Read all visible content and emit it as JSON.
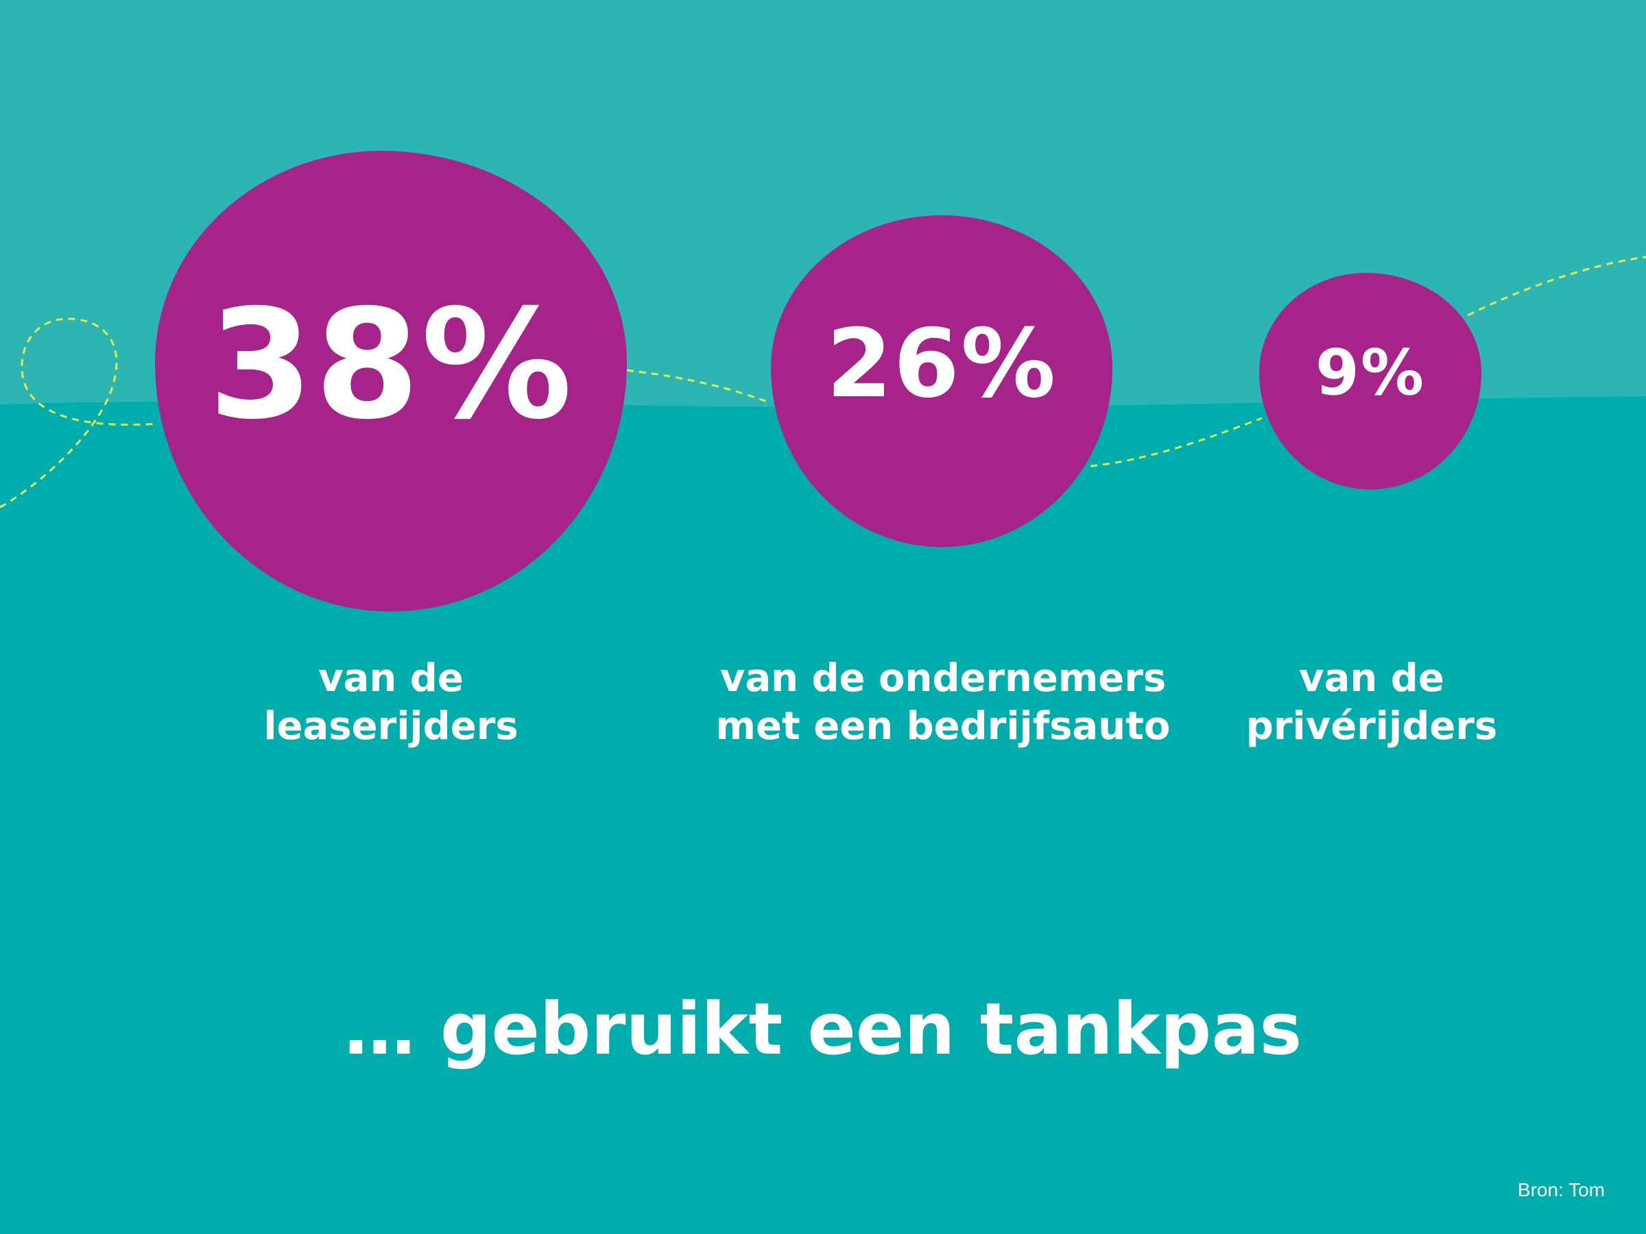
{
  "colors": {
    "background_lower": "#00adad",
    "background_upper": "#2db5b3",
    "bubble": "#a62389",
    "text": "#ffffff",
    "dashed_line": "#e2e94b"
  },
  "chart_data": {
    "type": "bubble",
    "unit": "%",
    "categories": [
      [
        "van de",
        "leaserijders"
      ],
      [
        "van de ondernemers",
        "met een bedrijfsauto"
      ],
      [
        "van de",
        "privérijders"
      ]
    ],
    "values": [
      38,
      26,
      9
    ],
    "value_labels": [
      "38%",
      "26%",
      "9%"
    ],
    "headline": "… gebruikt een tankpas",
    "source": "Bron: Tom"
  }
}
